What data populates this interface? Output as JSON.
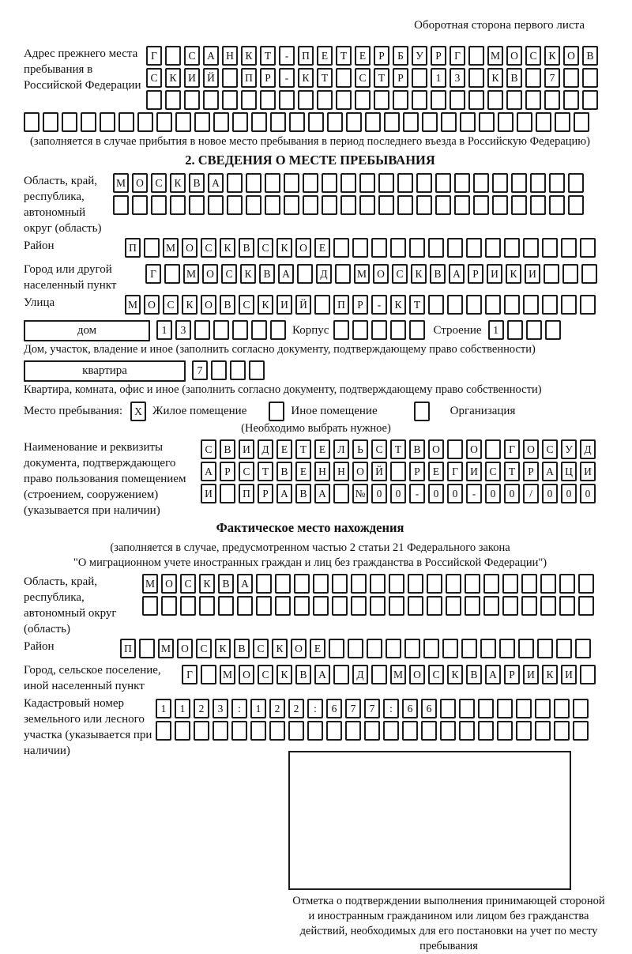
{
  "page": {
    "header_note": "Оборотная сторона первого листа"
  },
  "prev_address": {
    "label": "Адрес прежнего места пребывания в Российской Федерации",
    "rows": [
      "Г САНКТ-ПЕТЕРБУРГ МОСКОВ",
      "СКИЙ ПР-КТ СТР 13 КВ 7  ",
      "                        "
    ],
    "full_row": "                              ",
    "note": "(заполняется в случае прибытия в новое место пребывания в период последнего въезда в Российскую Федерацию)"
  },
  "section2": {
    "title": "2. СВЕДЕНИЯ О МЕСТЕ ПРЕБЫВАНИЯ",
    "region": {
      "label": "Область, край, республика, автономный округ (область)",
      "rows": [
        "МОСКВА                   ",
        "                         "
      ]
    },
    "district": {
      "label": "Район",
      "row": "П МОСКВСКОЕ              "
    },
    "city": {
      "label": "Город или другой населенный пункт",
      "row": "Г МОСКВА Д МОСКВАРИКИ   "
    },
    "street": {
      "label": "Улица",
      "row": "МОСКОВСКИЙ ПР-КТ         "
    },
    "house": {
      "label": "дом",
      "cells": "13     ",
      "korpus_label": "Корпус",
      "korpus_cells": "     ",
      "stroenie_label": "Строение",
      "stroenie_cells": "1   "
    },
    "house_note": "Дом, участок, владение и иное (заполнить согласно документу, подтверждающему право собственности)",
    "apartment": {
      "label": "квартира",
      "cells": "7   "
    },
    "apartment_note": "Квартира, комната, офис и иное (заполнить согласно документу, подтверждающему право собственности)",
    "stay_type": {
      "label": "Место пребывания:",
      "options": [
        {
          "label": "Жилое помещение",
          "checked": "X"
        },
        {
          "label": "Иное помещение",
          "checked": ""
        },
        {
          "label": "Организация",
          "checked": ""
        }
      ],
      "note": "(Необходимо выбрать нужное)"
    },
    "document": {
      "label": "Наименование и реквизиты документа, подтверждающего право пользования помещением (строением, сооружением) (указывается при наличии)",
      "rows": [
        "СВИДЕТЕЛЬСТВО О ГОСУД",
        "АРСТВЕННОЙ РЕГИСТРАЦИ",
        "И ПРАВА №00-00-00/000"
      ]
    }
  },
  "actual_location": {
    "title": "Фактическое место нахождения",
    "note_line1": "(заполняется в случае, предусмотренном частью 2 статьи 21 Федерального закона",
    "note_line2": "\"О миграционном учете иностранных граждан и лиц без гражданства в Российской Федерации\")",
    "region": {
      "label": "Область, край, республика, автономный округ (область)",
      "rows": [
        "МОСКВА                  ",
        "                        "
      ]
    },
    "district": {
      "label": "Район",
      "row": "П МОСКВСКОЕ              "
    },
    "city": {
      "label": "Город, сельское поселение, иной населенный пункт",
      "row": "Г МОСКВА Д МОСКВАРИКИ "
    },
    "cadastral": {
      "label": "Кадастровый номер земельного или лесного участка (указывается при наличии)",
      "rows": [
        "1123:122:677:66        ",
        "                       "
      ]
    },
    "stamp_caption": "Отметка о подтверждении выполнения принимающей стороной и иностранным гражданином или лицом без гражданства действий, необходимых для его постановки на учет по месту пребывания"
  }
}
